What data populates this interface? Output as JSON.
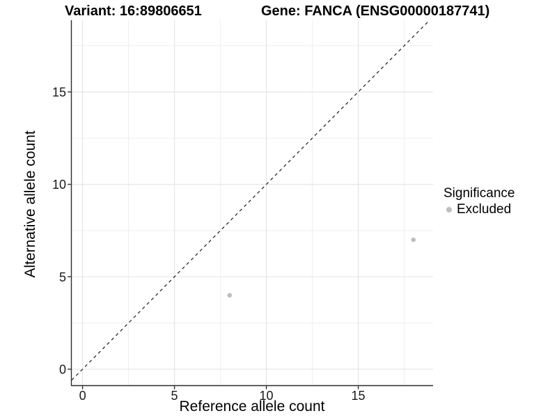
{
  "chart_data": {
    "type": "scatter",
    "title_left": "Variant: 16:89806651",
    "title_right": "Gene: FANCA (ENSG00000187741)",
    "xlabel": "Reference allele count",
    "ylabel": "Alternative allele count",
    "xlim": [
      -0.59,
      19.07
    ],
    "ylim": [
      -0.87,
      18.88
    ],
    "x_major_ticks": [
      0,
      5,
      10,
      15
    ],
    "y_major_ticks": [
      0,
      5,
      10,
      15
    ],
    "x_minor_ticks": [
      2.5,
      7.5,
      12.5,
      17.5
    ],
    "y_minor_ticks": [
      2.5,
      7.5,
      12.5,
      17.5
    ],
    "grid": true,
    "reference_line": {
      "type": "identity",
      "slope": 1,
      "intercept": 0,
      "style": "dashed",
      "color": "#1a1a1a"
    },
    "series": [
      {
        "name": "Excluded",
        "color": "#bebebe",
        "points": [
          {
            "x": 8,
            "y": 4
          },
          {
            "x": 18,
            "y": 7
          }
        ]
      }
    ],
    "legend": {
      "title": "Significance",
      "position": "right",
      "items": [
        {
          "label": "Excluded",
          "color": "#bebebe"
        }
      ]
    },
    "colors": {
      "background": "#ffffff",
      "major_grid": "#e3e3e3",
      "minor_grid": "#efefef",
      "axis_line": "#2b2b2b",
      "tick_label": "#1a1a1a",
      "point": "#bebebe"
    }
  }
}
